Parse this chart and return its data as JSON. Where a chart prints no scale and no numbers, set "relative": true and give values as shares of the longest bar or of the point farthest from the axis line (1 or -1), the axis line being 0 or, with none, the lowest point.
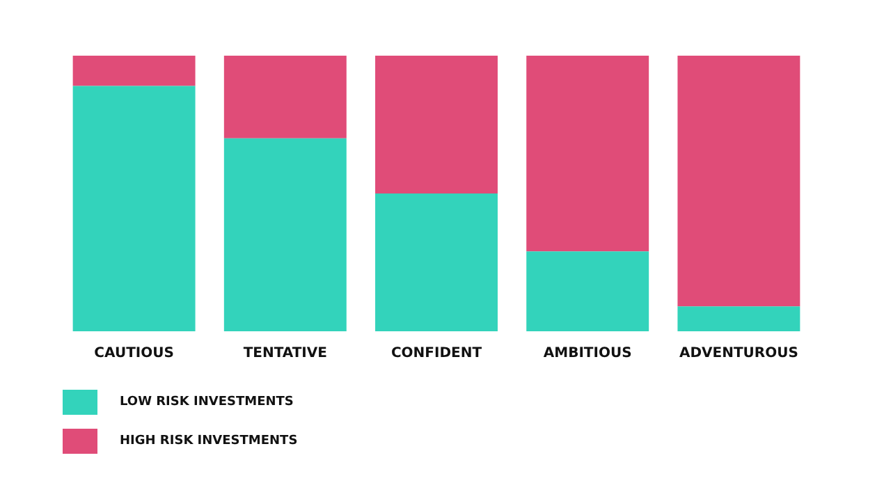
{
  "chart_data": {
    "type": "bar",
    "stacked": true,
    "relative": true,
    "grid": false,
    "legend": "bottom left",
    "categories": [
      "CAUTIOUS",
      "TENTATIVE",
      "CONFIDENT",
      "AMBITIOUS",
      "ADVENTUROUS"
    ],
    "series": [
      {
        "name": "LOW RISK INVESTMENTS",
        "color": "#33d3bb",
        "values": [
          0.89,
          0.7,
          0.5,
          0.29,
          0.09
        ]
      },
      {
        "name": "HIGH RISK INVESTMENTS",
        "color": "#e04c78",
        "values": [
          0.11,
          0.3,
          0.5,
          0.71,
          0.91
        ]
      }
    ]
  }
}
